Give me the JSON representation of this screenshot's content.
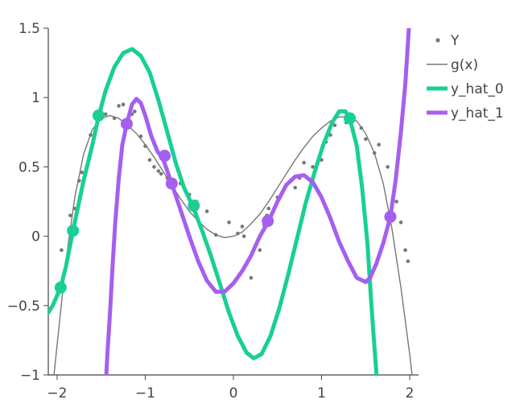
{
  "chart_data": {
    "type": "line",
    "xlim": [
      -2.1,
      2.1
    ],
    "ylim": [
      -1,
      1.5
    ],
    "x_ticks": [
      -2,
      -1,
      0,
      1,
      2
    ],
    "x_tick_labels": [
      "−2",
      "−1",
      "0",
      "1",
      "2"
    ],
    "y_ticks": [
      -1,
      -0.5,
      0,
      0.5,
      1,
      1.5
    ],
    "y_tick_labels": [
      "−1",
      "−0.5",
      "0",
      "0.5",
      "1",
      "1.5"
    ],
    "grid": false,
    "legend_position": "top-right",
    "series": [
      {
        "name": "Y",
        "kind": "scatter",
        "color": "#777777",
        "points": [
          [
            -1.95,
            -0.1
          ],
          [
            -1.85,
            0.15
          ],
          [
            -1.8,
            0.2
          ],
          [
            -1.75,
            0.4
          ],
          [
            -1.72,
            0.46
          ],
          [
            -1.62,
            0.73
          ],
          [
            -1.5,
            0.86
          ],
          [
            -1.45,
            0.88
          ],
          [
            -1.35,
            0.85
          ],
          [
            -1.3,
            0.94
          ],
          [
            -1.25,
            0.95
          ],
          [
            -1.2,
            0.84
          ],
          [
            -1.15,
            0.88
          ],
          [
            -1.12,
            0.9
          ],
          [
            -1.05,
            0.72
          ],
          [
            -1.0,
            0.65
          ],
          [
            -0.95,
            0.55
          ],
          [
            -0.9,
            0.5
          ],
          [
            -0.85,
            0.47
          ],
          [
            -0.82,
            0.45
          ],
          [
            -0.75,
            0.42
          ],
          [
            -0.7,
            0.4
          ],
          [
            -0.6,
            0.38
          ],
          [
            -0.5,
            0.3
          ],
          [
            -0.42,
            0.25
          ],
          [
            -0.3,
            0.18
          ],
          [
            -0.2,
            0.01
          ],
          [
            -0.05,
            0.1
          ],
          [
            0.05,
            0.02
          ],
          [
            0.1,
            0.07
          ],
          [
            0.12,
            0.0
          ],
          [
            0.15,
            -0.2
          ],
          [
            0.2,
            -0.3
          ],
          [
            0.3,
            -0.1
          ],
          [
            0.35,
            0.08
          ],
          [
            0.38,
            0.15
          ],
          [
            0.4,
            0.2
          ],
          [
            0.5,
            0.28
          ],
          [
            0.7,
            0.35
          ],
          [
            0.75,
            0.42
          ],
          [
            0.8,
            0.53
          ],
          [
            0.9,
            0.5
          ],
          [
            1.0,
            0.55
          ],
          [
            1.05,
            0.68
          ],
          [
            1.1,
            0.73
          ],
          [
            1.15,
            0.8
          ],
          [
            1.25,
            0.9
          ],
          [
            1.28,
            0.82
          ],
          [
            1.35,
            0.83
          ],
          [
            1.45,
            0.78
          ],
          [
            1.5,
            0.7
          ],
          [
            1.6,
            0.6
          ],
          [
            1.65,
            0.66
          ],
          [
            1.75,
            0.5
          ],
          [
            1.85,
            0.25
          ],
          [
            1.9,
            0.1
          ],
          [
            1.95,
            -0.1
          ],
          [
            1.98,
            -0.18
          ]
        ]
      },
      {
        "name": "g(x)",
        "kind": "line",
        "color": "#777777",
        "points": [
          [
            -2.1,
            -1.4
          ],
          [
            -2.0,
            -0.78
          ],
          [
            -1.9,
            -0.18
          ],
          [
            -1.8,
            0.28
          ],
          [
            -1.7,
            0.59
          ],
          [
            -1.6,
            0.77
          ],
          [
            -1.5,
            0.85
          ],
          [
            -1.4,
            0.87
          ],
          [
            -1.3,
            0.85
          ],
          [
            -1.2,
            0.8
          ],
          [
            -1.1,
            0.74
          ],
          [
            -1.0,
            0.66
          ],
          [
            -0.9,
            0.57
          ],
          [
            -0.8,
            0.47
          ],
          [
            -0.7,
            0.37
          ],
          [
            -0.6,
            0.27
          ],
          [
            -0.5,
            0.18
          ],
          [
            -0.4,
            0.11
          ],
          [
            -0.3,
            0.05
          ],
          [
            -0.2,
            0.01
          ],
          [
            -0.1,
            -0.01
          ],
          [
            0.0,
            0.0
          ],
          [
            0.1,
            0.03
          ],
          [
            0.2,
            0.09
          ],
          [
            0.3,
            0.16
          ],
          [
            0.4,
            0.25
          ],
          [
            0.5,
            0.35
          ],
          [
            0.6,
            0.45
          ],
          [
            0.7,
            0.55
          ],
          [
            0.8,
            0.64
          ],
          [
            0.9,
            0.72
          ],
          [
            1.0,
            0.78
          ],
          [
            1.1,
            0.83
          ],
          [
            1.2,
            0.86
          ],
          [
            1.3,
            0.86
          ],
          [
            1.4,
            0.83
          ],
          [
            1.5,
            0.74
          ],
          [
            1.6,
            0.6
          ],
          [
            1.7,
            0.38
          ],
          [
            1.8,
            0.05
          ],
          [
            1.9,
            -0.37
          ],
          [
            2.0,
            -0.85
          ],
          [
            2.1,
            -1.4
          ]
        ]
      },
      {
        "name": "y_hat_0",
        "kind": "line",
        "color": "#19cf96",
        "points": [
          [
            -2.1,
            -0.55
          ],
          [
            -2.05,
            -0.5
          ],
          [
            -1.96,
            -0.37
          ],
          [
            -1.9,
            -0.22
          ],
          [
            -1.82,
            0.04
          ],
          [
            -1.7,
            0.4
          ],
          [
            -1.6,
            0.66
          ],
          [
            -1.53,
            0.86
          ],
          [
            -1.45,
            1.05
          ],
          [
            -1.35,
            1.22
          ],
          [
            -1.25,
            1.32
          ],
          [
            -1.15,
            1.35
          ],
          [
            -1.05,
            1.3
          ],
          [
            -0.95,
            1.18
          ],
          [
            -0.85,
            0.98
          ],
          [
            -0.75,
            0.75
          ],
          [
            -0.65,
            0.52
          ],
          [
            -0.56,
            0.35
          ],
          [
            -0.45,
            0.2
          ],
          [
            -0.35,
            0.03
          ],
          [
            -0.25,
            -0.15
          ],
          [
            -0.15,
            -0.35
          ],
          [
            -0.05,
            -0.55
          ],
          [
            0.05,
            -0.72
          ],
          [
            0.15,
            -0.84
          ],
          [
            0.23,
            -0.88
          ],
          [
            0.32,
            -0.85
          ],
          [
            0.42,
            -0.72
          ],
          [
            0.52,
            -0.52
          ],
          [
            0.62,
            -0.28
          ],
          [
            0.72,
            -0.02
          ],
          [
            0.82,
            0.24
          ],
          [
            0.92,
            0.46
          ],
          [
            1.02,
            0.66
          ],
          [
            1.12,
            0.82
          ],
          [
            1.2,
            0.9
          ],
          [
            1.27,
            0.9
          ],
          [
            1.32,
            0.85
          ],
          [
            1.4,
            0.65
          ],
          [
            1.46,
            0.35
          ],
          [
            1.52,
            -0.05
          ],
          [
            1.56,
            -0.45
          ],
          [
            1.6,
            -0.8
          ],
          [
            1.63,
            -1.05
          ]
        ]
      },
      {
        "name": "y_hat_1",
        "kind": "line",
        "color": "#a55ff0",
        "points": [
          [
            -1.45,
            -1.1
          ],
          [
            -1.43,
            -0.85
          ],
          [
            -1.4,
            -0.55
          ],
          [
            -1.37,
            -0.2
          ],
          [
            -1.34,
            0.1
          ],
          [
            -1.3,
            0.42
          ],
          [
            -1.26,
            0.66
          ],
          [
            -1.21,
            0.81
          ],
          [
            -1.15,
            0.95
          ],
          [
            -1.1,
            0.99
          ],
          [
            -1.05,
            0.96
          ],
          [
            -1.0,
            0.87
          ],
          [
            -0.93,
            0.72
          ],
          [
            -0.86,
            0.61
          ],
          [
            -0.8,
            0.56
          ],
          [
            -0.7,
            0.38
          ],
          [
            -0.6,
            0.19
          ],
          [
            -0.5,
            0.0
          ],
          [
            -0.4,
            -0.18
          ],
          [
            -0.3,
            -0.32
          ],
          [
            -0.2,
            -0.4
          ],
          [
            -0.1,
            -0.4
          ],
          [
            0.0,
            -0.34
          ],
          [
            0.1,
            -0.25
          ],
          [
            0.2,
            -0.14
          ],
          [
            0.3,
            0.0
          ],
          [
            0.4,
            0.11
          ],
          [
            0.5,
            0.25
          ],
          [
            0.6,
            0.37
          ],
          [
            0.7,
            0.43
          ],
          [
            0.8,
            0.44
          ],
          [
            0.9,
            0.39
          ],
          [
            1.0,
            0.28
          ],
          [
            1.1,
            0.13
          ],
          [
            1.2,
            -0.04
          ],
          [
            1.3,
            -0.18
          ],
          [
            1.4,
            -0.3
          ],
          [
            1.5,
            -0.33
          ],
          [
            1.55,
            -0.3
          ],
          [
            1.62,
            -0.2
          ],
          [
            1.7,
            -0.05
          ],
          [
            1.78,
            0.14
          ],
          [
            1.84,
            0.4
          ],
          [
            1.9,
            0.75
          ],
          [
            1.95,
            1.1
          ],
          [
            1.99,
            1.5
          ],
          [
            2.02,
            1.8
          ]
        ]
      }
    ],
    "highlight_markers": [
      {
        "series": "y_hat_0",
        "points": [
          [
            -1.96,
            -0.37
          ],
          [
            -1.82,
            0.04
          ],
          [
            -1.53,
            0.87
          ],
          [
            -0.45,
            0.22
          ],
          [
            1.32,
            0.85
          ]
        ]
      },
      {
        "series": "y_hat_1",
        "points": [
          [
            -1.21,
            0.81
          ],
          [
            -0.78,
            0.58
          ],
          [
            -0.7,
            0.38
          ],
          [
            0.39,
            0.11
          ],
          [
            1.78,
            0.14
          ]
        ]
      }
    ],
    "legend": [
      {
        "name": "Y",
        "label": "Y",
        "style": "marker",
        "color": "#777777"
      },
      {
        "name": "g(x)",
        "label": "g(x)",
        "style": "thin-line",
        "color": "#777777"
      },
      {
        "name": "y_hat_0",
        "label": "y_hat_0",
        "style": "thick-line",
        "color": "#19cf96"
      },
      {
        "name": "y_hat_1",
        "label": "y_hat_1",
        "style": "thick-line",
        "color": "#a55ff0"
      }
    ]
  }
}
